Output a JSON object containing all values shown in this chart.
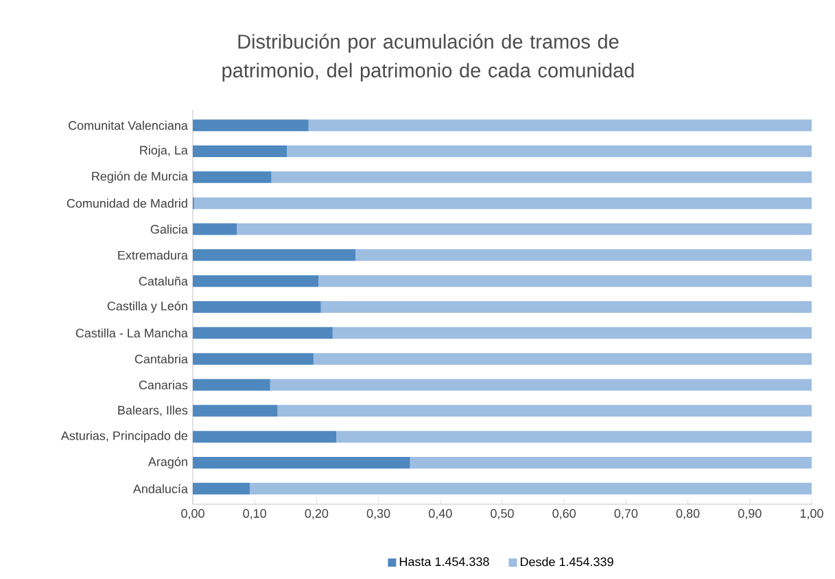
{
  "chart_data": {
    "type": "bar",
    "orientation": "horizontal",
    "stacked": true,
    "title": "Distribución por acumulación de tramos de patrimonio, del patrimonio de cada comunidad",
    "categories": [
      "Comunitat Valenciana",
      "Rioja, La",
      "Región de Murcia",
      "Comunidad de Madrid",
      "Galicia",
      "Extremadura",
      "Cataluña",
      "Castilla y León",
      "Castilla - La Mancha",
      "Cantabria",
      "Canarias",
      "Balears, Illes",
      "Asturias, Principado de",
      "Aragón",
      "Andalucía"
    ],
    "series": [
      {
        "name": "Hasta 1.454.338",
        "color": "#4f88bf",
        "values": [
          0.187,
          0.152,
          0.127,
          0.002,
          0.071,
          0.263,
          0.203,
          0.207,
          0.226,
          0.195,
          0.125,
          0.137,
          0.232,
          0.351,
          0.092
        ]
      },
      {
        "name": "Desde 1.454.339",
        "color": "#9dbde1",
        "values": [
          0.813,
          0.848,
          0.873,
          0.998,
          0.929,
          0.737,
          0.797,
          0.793,
          0.774,
          0.805,
          0.875,
          0.863,
          0.768,
          0.649,
          0.908
        ]
      }
    ],
    "xlim": [
      0,
      1
    ],
    "xticks": [
      {
        "value": 0,
        "label": "0,00"
      },
      {
        "value": 0.1,
        "label": "0,10"
      },
      {
        "value": 0.2,
        "label": "0,20"
      },
      {
        "value": 0.3,
        "label": "0,30"
      },
      {
        "value": 0.4,
        "label": "0,40"
      },
      {
        "value": 0.5,
        "label": "0,50"
      },
      {
        "value": 0.6,
        "label": "0,60"
      },
      {
        "value": 0.7,
        "label": "0,70"
      },
      {
        "value": 0.8,
        "label": "0,80"
      },
      {
        "value": 0.9,
        "label": "0,90"
      },
      {
        "value": 1,
        "label": "1,00"
      }
    ],
    "legend": "bottom"
  }
}
